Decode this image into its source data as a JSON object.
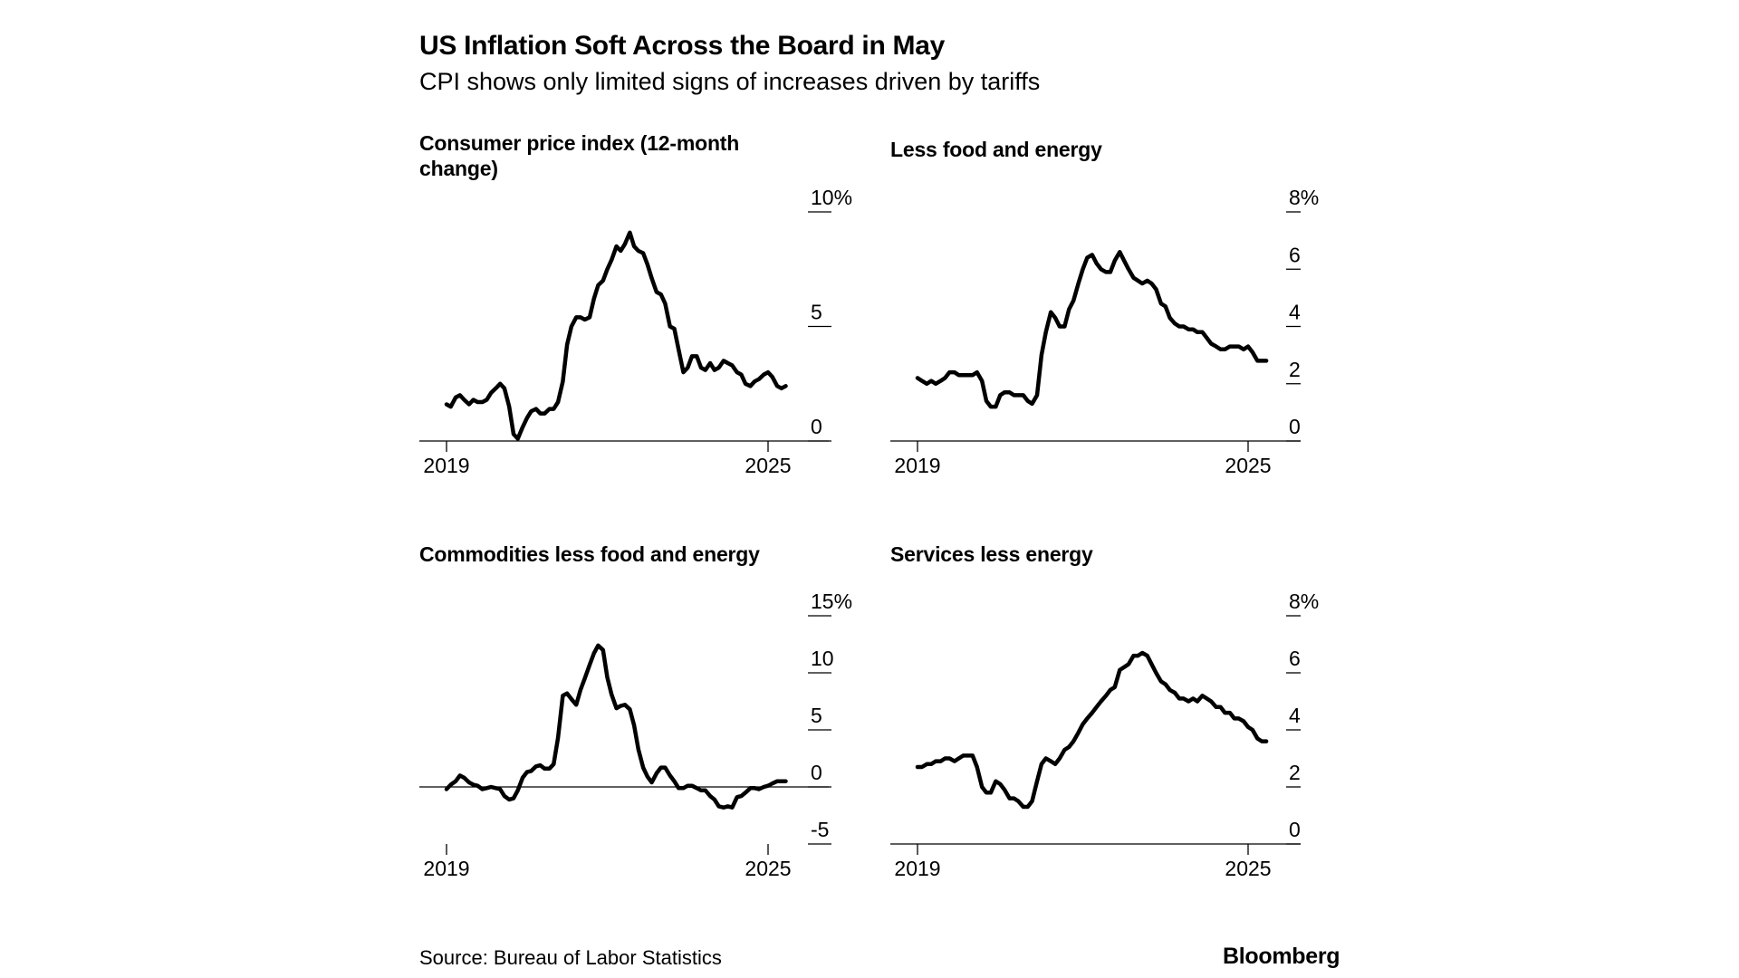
{
  "header": {
    "title": "US Inflation Soft Across the Board in May",
    "subtitle": "CPI shows only limited signs of increases driven by tariffs"
  },
  "footer": {
    "source": "Source: Bureau of Labor Statistics",
    "brand": "Bloomberg"
  },
  "colors": {
    "line": "#000000",
    "axis": "#000000",
    "background": "#ffffff"
  },
  "chart_data": [
    {
      "type": "line",
      "title": "Consumer price index (12-month change)",
      "x_range": [
        2019.0,
        2025.42
      ],
      "x_ticks": [
        2019,
        2025
      ],
      "x_tick_labels": [
        "2019",
        "2025"
      ],
      "ylim": [
        0,
        10
      ],
      "y_ticks": [
        0,
        5,
        10
      ],
      "y_tick_labels": [
        "0",
        "5",
        "10%"
      ],
      "grid": false,
      "legend": "none",
      "series": [
        {
          "x": [
            2019.0,
            2019.08,
            2019.17,
            2019.25,
            2019.33,
            2019.42,
            2019.5,
            2019.58,
            2019.67,
            2019.75,
            2019.83,
            2019.92,
            2020.0,
            2020.08,
            2020.17,
            2020.25,
            2020.33,
            2020.42,
            2020.5,
            2020.58,
            2020.67,
            2020.75,
            2020.83,
            2020.92,
            2021.0,
            2021.08,
            2021.17,
            2021.25,
            2021.33,
            2021.42,
            2021.5,
            2021.58,
            2021.67,
            2021.75,
            2021.83,
            2021.92,
            2022.0,
            2022.08,
            2022.17,
            2022.25,
            2022.33,
            2022.42,
            2022.5,
            2022.58,
            2022.67,
            2022.75,
            2022.83,
            2022.92,
            2023.0,
            2023.08,
            2023.17,
            2023.25,
            2023.33,
            2023.42,
            2023.5,
            2023.58,
            2023.67,
            2023.75,
            2023.83,
            2023.92,
            2024.0,
            2024.08,
            2024.17,
            2024.25,
            2024.33,
            2024.42,
            2024.5,
            2024.58,
            2024.67,
            2024.75,
            2024.83,
            2024.92,
            2025.0,
            2025.08,
            2025.17,
            2025.25,
            2025.33
          ],
          "values": [
            1.6,
            1.5,
            1.9,
            2.0,
            1.8,
            1.6,
            1.8,
            1.7,
            1.7,
            1.8,
            2.1,
            2.3,
            2.5,
            2.3,
            1.5,
            0.3,
            0.1,
            0.6,
            1.0,
            1.3,
            1.4,
            1.2,
            1.2,
            1.4,
            1.4,
            1.7,
            2.6,
            4.2,
            5.0,
            5.4,
            5.4,
            5.3,
            5.4,
            6.2,
            6.8,
            7.0,
            7.5,
            7.9,
            8.5,
            8.3,
            8.6,
            9.1,
            8.5,
            8.3,
            8.2,
            7.7,
            7.1,
            6.5,
            6.4,
            6.0,
            5.0,
            4.9,
            4.0,
            3.0,
            3.2,
            3.7,
            3.7,
            3.2,
            3.1,
            3.4,
            3.1,
            3.2,
            3.5,
            3.4,
            3.3,
            3.0,
            2.9,
            2.5,
            2.4,
            2.6,
            2.7,
            2.9,
            3.0,
            2.8,
            2.4,
            2.3,
            2.4
          ]
        }
      ]
    },
    {
      "type": "line",
      "title": "Less food and energy",
      "x_range": [
        2019.0,
        2025.42
      ],
      "x_ticks": [
        2019,
        2025
      ],
      "x_tick_labels": [
        "2019",
        "2025"
      ],
      "ylim": [
        0,
        8
      ],
      "y_ticks": [
        0,
        2,
        4,
        6,
        8
      ],
      "y_tick_labels": [
        "0",
        "2",
        "4",
        "6",
        "8%"
      ],
      "grid": false,
      "legend": "none",
      "series": [
        {
          "x": [
            2019.0,
            2019.08,
            2019.17,
            2019.25,
            2019.33,
            2019.42,
            2019.5,
            2019.58,
            2019.67,
            2019.75,
            2019.83,
            2019.92,
            2020.0,
            2020.08,
            2020.17,
            2020.25,
            2020.33,
            2020.42,
            2020.5,
            2020.58,
            2020.67,
            2020.75,
            2020.83,
            2020.92,
            2021.0,
            2021.08,
            2021.17,
            2021.25,
            2021.33,
            2021.42,
            2021.5,
            2021.58,
            2021.67,
            2021.75,
            2021.83,
            2021.92,
            2022.0,
            2022.08,
            2022.17,
            2022.25,
            2022.33,
            2022.42,
            2022.5,
            2022.58,
            2022.67,
            2022.75,
            2022.83,
            2022.92,
            2023.0,
            2023.08,
            2023.17,
            2023.25,
            2023.33,
            2023.42,
            2023.5,
            2023.58,
            2023.67,
            2023.75,
            2023.83,
            2023.92,
            2024.0,
            2024.08,
            2024.17,
            2024.25,
            2024.33,
            2024.42,
            2024.5,
            2024.58,
            2024.67,
            2024.75,
            2024.83,
            2024.92,
            2025.0,
            2025.08,
            2025.17,
            2025.25,
            2025.33
          ],
          "values": [
            2.2,
            2.1,
            2.0,
            2.1,
            2.0,
            2.1,
            2.2,
            2.4,
            2.4,
            2.3,
            2.3,
            2.3,
            2.3,
            2.4,
            2.1,
            1.4,
            1.2,
            1.2,
            1.6,
            1.7,
            1.7,
            1.6,
            1.6,
            1.6,
            1.4,
            1.3,
            1.6,
            3.0,
            3.8,
            4.5,
            4.3,
            4.0,
            4.0,
            4.6,
            4.9,
            5.5,
            6.0,
            6.4,
            6.5,
            6.2,
            6.0,
            5.9,
            5.9,
            6.3,
            6.6,
            6.3,
            6.0,
            5.7,
            5.6,
            5.5,
            5.6,
            5.5,
            5.3,
            4.8,
            4.7,
            4.3,
            4.1,
            4.0,
            4.0,
            3.9,
            3.9,
            3.8,
            3.8,
            3.6,
            3.4,
            3.3,
            3.2,
            3.2,
            3.3,
            3.3,
            3.3,
            3.2,
            3.3,
            3.1,
            2.8,
            2.8,
            2.8
          ]
        }
      ]
    },
    {
      "type": "line",
      "title": "Commodities less food and energy",
      "x_range": [
        2019.0,
        2025.42
      ],
      "x_ticks": [
        2019,
        2025
      ],
      "x_tick_labels": [
        "2019",
        "2025"
      ],
      "ylim": [
        -5,
        15
      ],
      "y_ticks": [
        -5,
        0,
        5,
        10,
        15
      ],
      "y_tick_labels": [
        "-5",
        "0",
        "5",
        "10",
        "15%"
      ],
      "zero_line": true,
      "grid": false,
      "legend": "none",
      "series": [
        {
          "x": [
            2019.0,
            2019.08,
            2019.17,
            2019.25,
            2019.33,
            2019.42,
            2019.5,
            2019.58,
            2019.67,
            2019.75,
            2019.83,
            2019.92,
            2020.0,
            2020.08,
            2020.17,
            2020.25,
            2020.33,
            2020.42,
            2020.5,
            2020.58,
            2020.67,
            2020.75,
            2020.83,
            2020.92,
            2021.0,
            2021.08,
            2021.17,
            2021.25,
            2021.33,
            2021.42,
            2021.5,
            2021.58,
            2021.67,
            2021.75,
            2021.83,
            2021.92,
            2022.0,
            2022.08,
            2022.17,
            2022.25,
            2022.33,
            2022.42,
            2022.5,
            2022.58,
            2022.67,
            2022.75,
            2022.83,
            2022.92,
            2023.0,
            2023.08,
            2023.17,
            2023.25,
            2023.33,
            2023.42,
            2023.5,
            2023.58,
            2023.67,
            2023.75,
            2023.83,
            2023.92,
            2024.0,
            2024.08,
            2024.17,
            2024.25,
            2024.33,
            2024.42,
            2024.5,
            2024.58,
            2024.67,
            2024.75,
            2024.83,
            2024.92,
            2025.0,
            2025.08,
            2025.17,
            2025.25,
            2025.33
          ],
          "values": [
            -0.2,
            0.2,
            0.5,
            1.0,
            0.8,
            0.4,
            0.2,
            0.1,
            -0.2,
            -0.1,
            0.0,
            -0.1,
            -0.2,
            -0.8,
            -1.1,
            -1.0,
            -0.3,
            0.8,
            1.3,
            1.4,
            1.8,
            1.9,
            1.6,
            1.6,
            2.0,
            4.3,
            8.0,
            8.2,
            7.7,
            7.2,
            8.5,
            9.5,
            10.7,
            11.7,
            12.4,
            12.0,
            9.6,
            8.1,
            6.9,
            7.1,
            7.2,
            6.8,
            5.4,
            3.3,
            1.7,
            0.9,
            0.4,
            1.2,
            1.7,
            1.7,
            1.0,
            0.5,
            -0.1,
            -0.1,
            0.1,
            0.1,
            -0.1,
            -0.3,
            -0.3,
            -0.8,
            -1.1,
            -1.7,
            -1.8,
            -1.7,
            -1.8,
            -0.9,
            -0.8,
            -0.5,
            -0.1,
            -0.1,
            -0.2,
            0.0,
            0.1,
            0.3,
            0.5,
            0.5,
            0.5
          ]
        }
      ]
    },
    {
      "type": "line",
      "title": "Services less energy",
      "x_range": [
        2019.0,
        2025.42
      ],
      "x_ticks": [
        2019,
        2025
      ],
      "x_tick_labels": [
        "2019",
        "2025"
      ],
      "ylim": [
        0,
        8
      ],
      "y_ticks": [
        0,
        2,
        4,
        6,
        8
      ],
      "y_tick_labels": [
        "0",
        "2",
        "4",
        "6",
        "8%"
      ],
      "grid": false,
      "legend": "none",
      "series": [
        {
          "x": [
            2019.0,
            2019.08,
            2019.17,
            2019.25,
            2019.33,
            2019.42,
            2019.5,
            2019.58,
            2019.67,
            2019.75,
            2019.83,
            2019.92,
            2020.0,
            2020.08,
            2020.17,
            2020.25,
            2020.33,
            2020.42,
            2020.5,
            2020.58,
            2020.67,
            2020.75,
            2020.83,
            2020.92,
            2021.0,
            2021.08,
            2021.17,
            2021.25,
            2021.33,
            2021.42,
            2021.5,
            2021.58,
            2021.67,
            2021.75,
            2021.83,
            2021.92,
            2022.0,
            2022.08,
            2022.17,
            2022.25,
            2022.33,
            2022.42,
            2022.5,
            2022.58,
            2022.67,
            2022.75,
            2022.83,
            2022.92,
            2023.0,
            2023.08,
            2023.17,
            2023.25,
            2023.33,
            2023.42,
            2023.5,
            2023.58,
            2023.67,
            2023.75,
            2023.83,
            2023.92,
            2024.0,
            2024.08,
            2024.17,
            2024.25,
            2024.33,
            2024.42,
            2024.5,
            2024.58,
            2024.67,
            2024.75,
            2024.83,
            2024.92,
            2025.0,
            2025.08,
            2025.17,
            2025.25,
            2025.33
          ],
          "values": [
            2.7,
            2.7,
            2.8,
            2.8,
            2.9,
            2.9,
            3.0,
            3.0,
            2.9,
            3.0,
            3.1,
            3.1,
            3.1,
            2.7,
            2.0,
            1.8,
            1.8,
            2.2,
            2.1,
            1.9,
            1.6,
            1.6,
            1.5,
            1.3,
            1.3,
            1.5,
            2.2,
            2.8,
            3.0,
            2.9,
            2.8,
            3.0,
            3.3,
            3.4,
            3.6,
            3.9,
            4.2,
            4.4,
            4.6,
            4.8,
            5.0,
            5.2,
            5.4,
            5.5,
            6.1,
            6.2,
            6.3,
            6.6,
            6.6,
            6.7,
            6.6,
            6.3,
            6.0,
            5.7,
            5.6,
            5.4,
            5.3,
            5.1,
            5.1,
            5.0,
            5.1,
            5.0,
            5.2,
            5.1,
            5.0,
            4.8,
            4.8,
            4.6,
            4.6,
            4.4,
            4.4,
            4.3,
            4.1,
            4.0,
            3.7,
            3.6,
            3.6
          ]
        }
      ]
    }
  ]
}
